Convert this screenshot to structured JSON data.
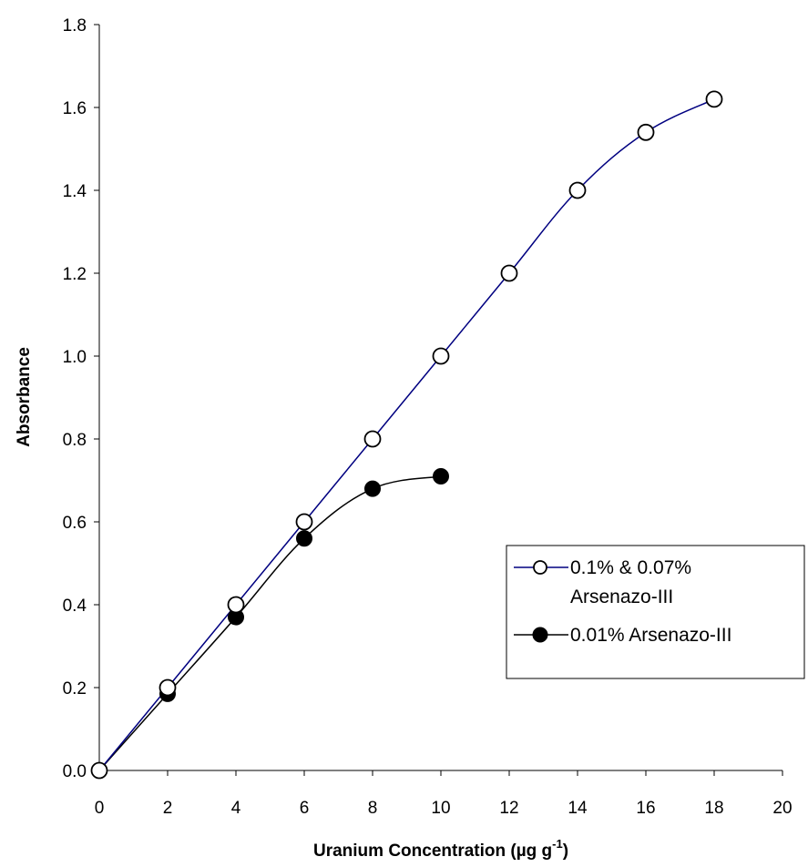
{
  "chart_data": {
    "type": "line",
    "xlabel": "Uranium Concentration (µg g",
    "xlabel_sup": "-1",
    "xlabel_end": ")",
    "ylabel": "Absorbance",
    "xlim": [
      0,
      20
    ],
    "ylim": [
      0,
      1.8
    ],
    "xticks": [
      "0",
      "2",
      "4",
      "6",
      "8",
      "10",
      "12",
      "14",
      "16",
      "18",
      "20"
    ],
    "yticks": [
      "0.0",
      "0.2",
      "0.4",
      "0.6",
      "0.8",
      "1.0",
      "1.2",
      "1.4",
      "1.6",
      "1.8"
    ],
    "grid": false,
    "legend_position": "right",
    "series": [
      {
        "name_line1": "0.1% & 0.07%",
        "name_line2": "Arsenazo-III",
        "marker": "open-circle",
        "color": "#000080",
        "x": [
          0,
          2,
          4,
          6,
          8,
          10,
          12,
          14,
          16,
          18
        ],
        "y": [
          0.0,
          0.2,
          0.4,
          0.6,
          0.8,
          1.0,
          1.2,
          1.4,
          1.54,
          1.62
        ]
      },
      {
        "name_line1": "0.01% Arsenazo-III",
        "marker": "filled-circle",
        "color": "#000000",
        "x": [
          0,
          2,
          4,
          6,
          8,
          10
        ],
        "y": [
          0.0,
          0.185,
          0.37,
          0.56,
          0.68,
          0.71
        ]
      }
    ]
  }
}
